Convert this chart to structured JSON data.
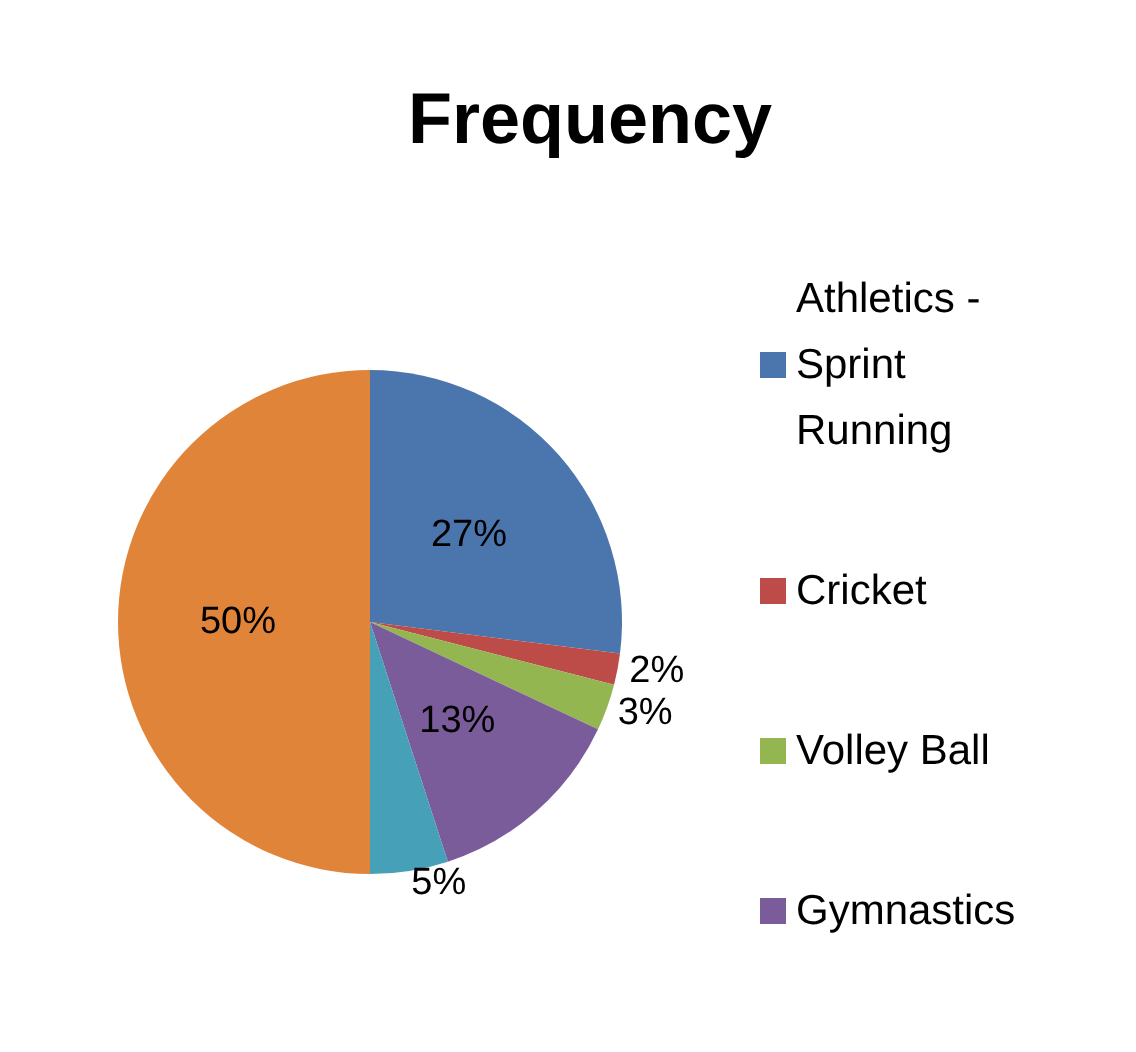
{
  "chart_data": {
    "type": "pie",
    "title": "Frequency",
    "categories": [
      "Athletics - Sprint Running",
      "Cricket",
      "Volley Ball",
      "Gymnastics",
      null,
      null
    ],
    "values": [
      27,
      2,
      3,
      13,
      5,
      50
    ],
    "colors": [
      "#4a76ad",
      "#bd4b48",
      "#94b650",
      "#7a5c9b",
      "#46a0b8",
      "#e0843a"
    ],
    "value_labels": [
      "27%",
      "2%",
      "3%",
      "13%",
      "5%",
      "50%"
    ],
    "legend": "right"
  }
}
